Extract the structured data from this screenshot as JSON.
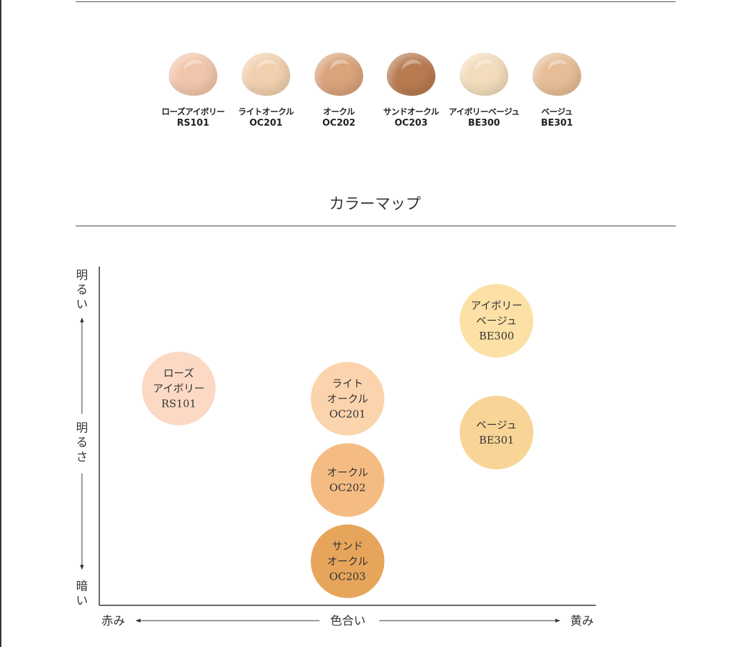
{
  "swatches": [
    {
      "name": "ローズアイボリー",
      "code": "RS101",
      "color": "#f1c5ab"
    },
    {
      "name": "ライトオークル",
      "code": "OC201",
      "color": "#f0cfae"
    },
    {
      "name": "オークル",
      "code": "OC202",
      "color": "#d9a37b"
    },
    {
      "name": "サンドオークル",
      "code": "OC203",
      "color": "#b87a50"
    },
    {
      "name": "アイボリーベージュ",
      "code": "BE300",
      "color": "#f2dcbc"
    },
    {
      "name": "ベージュ",
      "code": "BE301",
      "color": "#e6bd96"
    }
  ],
  "section_title": "カラーマップ",
  "chart_data": {
    "type": "scatter",
    "title": "カラーマップ",
    "xlabel": "色合い",
    "x_left": "赤み",
    "x_right": "黄み",
    "ylabel": "明るさ",
    "y_top": "明るい",
    "y_bottom": "暗い",
    "points": [
      {
        "lines": [
          "ローズ",
          "アイボリー",
          "RS101"
        ],
        "hue": 0.16,
        "brightness": 0.64,
        "color": "#fbd9c4"
      },
      {
        "lines": [
          "ライト",
          "オークル",
          "OC201"
        ],
        "hue": 0.5,
        "brightness": 0.61,
        "color": "#fbd4ad"
      },
      {
        "lines": [
          "オークル",
          "OC202"
        ],
        "hue": 0.5,
        "brightness": 0.37,
        "color": "#f4bc83"
      },
      {
        "lines": [
          "サンド",
          "オークル",
          "OC203"
        ],
        "hue": 0.5,
        "brightness": 0.13,
        "color": "#e7a55c"
      },
      {
        "lines": [
          "アイボリー",
          "ベージュ",
          "BE300"
        ],
        "hue": 0.8,
        "brightness": 0.84,
        "color": "#fde0a6"
      },
      {
        "lines": [
          "ベージュ",
          "BE301"
        ],
        "hue": 0.8,
        "brightness": 0.51,
        "color": "#f8d496"
      }
    ]
  }
}
